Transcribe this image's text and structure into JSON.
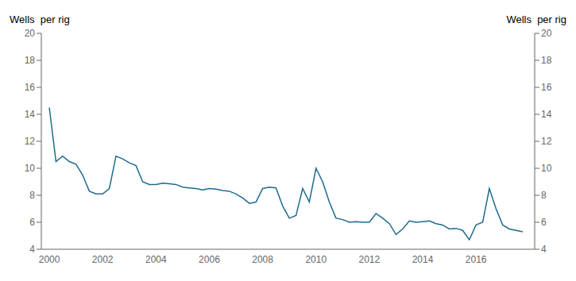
{
  "chart_data": {
    "type": "line",
    "ylabel": "Wells  per rig",
    "y2label": "Wells  per rig",
    "color": "#1f6b8e",
    "grid": false,
    "xlim": [
      1999.7,
      2018.2
    ],
    "xticks": [
      2000,
      2002,
      2004,
      2006,
      2008,
      2010,
      2012,
      2014,
      2016
    ],
    "ylim": [
      4,
      20
    ],
    "yticks": [
      4,
      6,
      8,
      10,
      12,
      14,
      16,
      18,
      20
    ],
    "y2lim": [
      4,
      20
    ],
    "y2ticks": [
      4,
      6,
      8,
      10,
      12,
      14,
      16,
      18,
      20
    ],
    "x": [
      2000.0,
      2000.25,
      2000.5,
      2000.75,
      2001.0,
      2001.25,
      2001.5,
      2001.75,
      2002.0,
      2002.25,
      2002.5,
      2002.75,
      2003.0,
      2003.25,
      2003.5,
      2003.75,
      2004.0,
      2004.25,
      2004.5,
      2004.75,
      2005.0,
      2005.25,
      2005.5,
      2005.75,
      2006.0,
      2006.25,
      2006.5,
      2006.75,
      2007.0,
      2007.25,
      2007.5,
      2007.75,
      2008.0,
      2008.25,
      2008.5,
      2008.75,
      2009.0,
      2009.25,
      2009.5,
      2009.75,
      2010.0,
      2010.25,
      2010.5,
      2010.75,
      2011.0,
      2011.25,
      2011.5,
      2011.75,
      2012.0,
      2012.25,
      2012.5,
      2012.75,
      2013.0,
      2013.25,
      2013.5,
      2013.75,
      2014.0,
      2014.25,
      2014.5,
      2014.75,
      2015.0,
      2015.25,
      2015.5,
      2015.75,
      2016.0,
      2016.25,
      2016.5,
      2016.75,
      2017.0,
      2017.25,
      2017.5,
      2017.75
    ],
    "values": [
      14.5,
      10.5,
      10.9,
      10.5,
      10.3,
      9.5,
      8.3,
      8.1,
      8.1,
      8.5,
      10.9,
      10.7,
      10.4,
      10.2,
      9.0,
      8.8,
      8.8,
      8.9,
      8.85,
      8.8,
      8.6,
      8.55,
      8.5,
      8.4,
      8.5,
      8.45,
      8.35,
      8.3,
      8.1,
      7.8,
      7.4,
      7.5,
      8.5,
      8.6,
      8.55,
      7.2,
      6.3,
      6.5,
      8.5,
      7.5,
      10.0,
      9.0,
      7.5,
      6.3,
      6.2,
      6.0,
      6.05,
      6.0,
      6.0,
      6.65,
      6.3,
      5.9,
      5.1,
      5.5,
      6.1,
      6.0,
      6.05,
      6.1,
      5.9,
      5.8,
      5.5,
      5.55,
      5.4,
      4.7,
      5.8,
      6.0,
      8.5,
      7.0,
      5.8,
      5.5,
      5.4,
      5.3
    ]
  }
}
